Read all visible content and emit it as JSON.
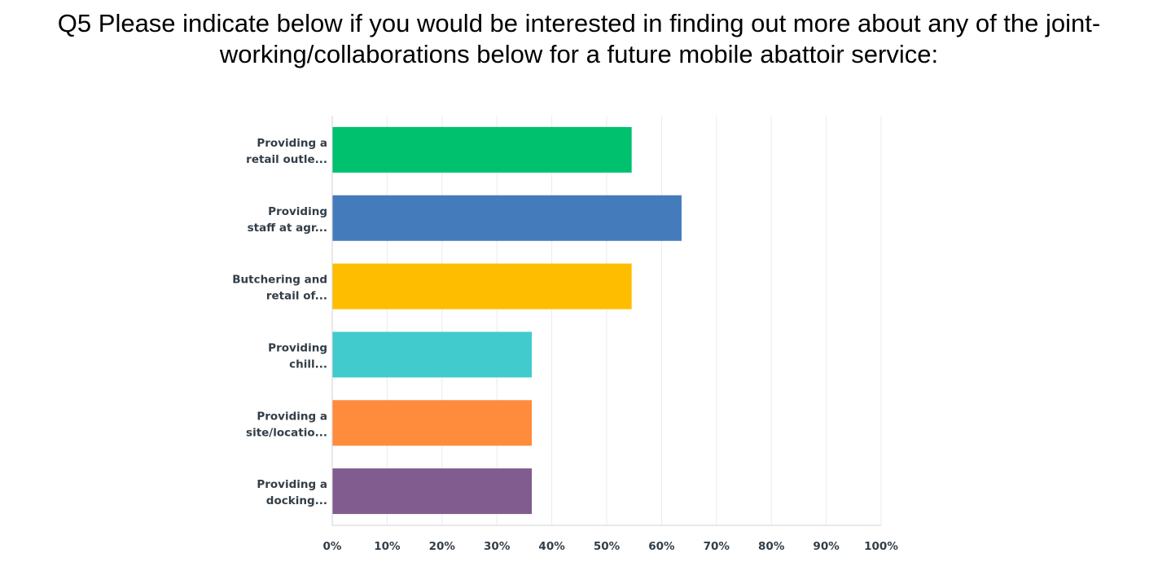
{
  "chart_data": {
    "type": "bar",
    "orientation": "horizontal",
    "title": "Q5 Please indicate below if you would be interested in finding out more about any of the joint-working/collaborations below for a future mobile abattoir service:",
    "title_lines": [
      "Q5 Please indicate below if you would be interested in finding out more about any of the joint-",
      "working/collaborations below for a future mobile abattoir service:"
    ],
    "categories": [
      [
        "Providing a",
        "retail outle..."
      ],
      [
        "Providing",
        "staff at agr..."
      ],
      [
        "Butchering and",
        "retail of..."
      ],
      [
        "Providing",
        "chill..."
      ],
      [
        "Providing a",
        "site/locatio..."
      ],
      [
        "Providing a",
        "docking..."
      ]
    ],
    "values": [
      54.55,
      63.64,
      54.55,
      36.36,
      36.36,
      36.36
    ],
    "colors": [
      "#00c16e",
      "#437bbb",
      "#ffbd00",
      "#41cbcd",
      "#ff8b3d",
      "#815c8f"
    ],
    "xlim": [
      0,
      100
    ],
    "x_ticks": [
      "0%",
      "10%",
      "20%",
      "30%",
      "40%",
      "50%",
      "60%",
      "70%",
      "80%",
      "90%",
      "100%"
    ],
    "grid": true,
    "legend": "none",
    "xlabel": "",
    "ylabel": ""
  }
}
